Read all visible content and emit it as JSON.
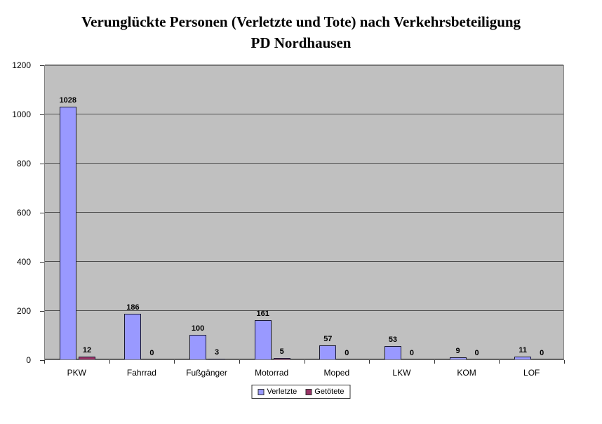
{
  "title": {
    "line1": "Verunglückte Personen (Verletzte und Tote) nach Verkehrsbeteiligung",
    "line2": "PD Nordhausen"
  },
  "chart_data": {
    "type": "bar",
    "title": "Verunglückte Personen (Verletzte und Tote) nach Verkehrsbeteiligung PD Nordhausen",
    "categories": [
      "PKW",
      "Fahrrad",
      "Fußgänger",
      "Motorrad",
      "Moped",
      "LKW",
      "KOM",
      "LOF"
    ],
    "series": [
      {
        "name": "Verletzte",
        "color": "#9999FF",
        "values": [
          1028,
          186,
          100,
          161,
          57,
          53,
          9,
          11
        ]
      },
      {
        "name": "Getötete",
        "color": "#993366",
        "values": [
          12,
          0,
          3,
          5,
          0,
          0,
          0,
          0
        ]
      }
    ],
    "xlabel": "",
    "ylabel": "",
    "ylim": [
      0,
      1200
    ],
    "ytick_step": 200,
    "grid": true,
    "value_labels": true,
    "legend_position": "bottom",
    "colors": {
      "plot_background": "#C0C0C0",
      "gridline": "#4D4D4D",
      "axis": "#333333",
      "bar_border": "#1A1A33",
      "plot_border": "#808080"
    }
  }
}
